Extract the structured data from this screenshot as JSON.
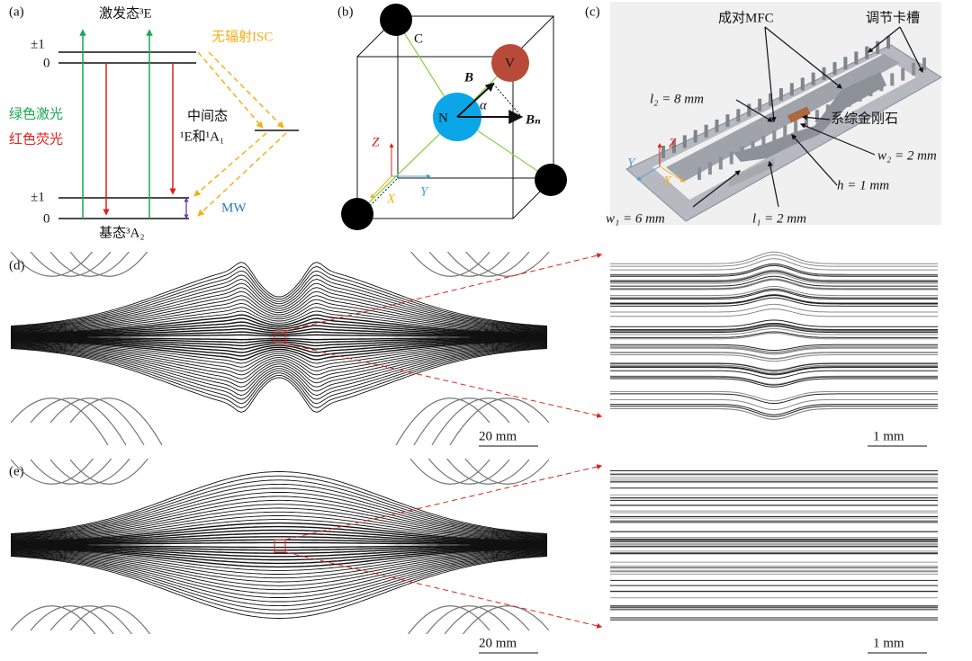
{
  "panel_a": {
    "label": "(a)",
    "excited_state": "激发态³E",
    "upper_plus1": "±1",
    "upper_zero": "0",
    "isc": "无辐射ISC",
    "green_laser": "绿色激光",
    "red_fluorescence": "红色荧光",
    "intermediate_state": "中间态",
    "intermediate_levels": "¹E和¹A₁",
    "lower_plus1": "±1",
    "lower_zero": "0",
    "mw": "MW",
    "ground_state": "基态³A₂"
  },
  "panel_b": {
    "label": "(b)",
    "carbon": "C",
    "vacancy": "V",
    "nitrogen": "N",
    "field": "B",
    "angle": "α",
    "field_n": "Bₙ",
    "axis_z": "Z",
    "axis_y": "Y",
    "axis_x": "X"
  },
  "panel_c": {
    "label": "(c)",
    "mfc_pair": "成对MFC",
    "slot": "调节卡槽",
    "l2": "l₂ = 8 mm",
    "diamond": "系综金刚石",
    "w2": "w₂ = 2 mm",
    "h": "h = 1 mm",
    "w1": "w₁ = 6 mm",
    "l1": "l₁ = 2 mm",
    "axis_z": "Z",
    "axis_y": "Y",
    "axis_x": "X"
  },
  "panel_d": {
    "label": "(d)",
    "scale_left": "20 mm",
    "scale_right": "1 mm"
  },
  "panel_e": {
    "label": "(e)",
    "scale_left": "20 mm",
    "scale_right": "1 mm"
  }
}
